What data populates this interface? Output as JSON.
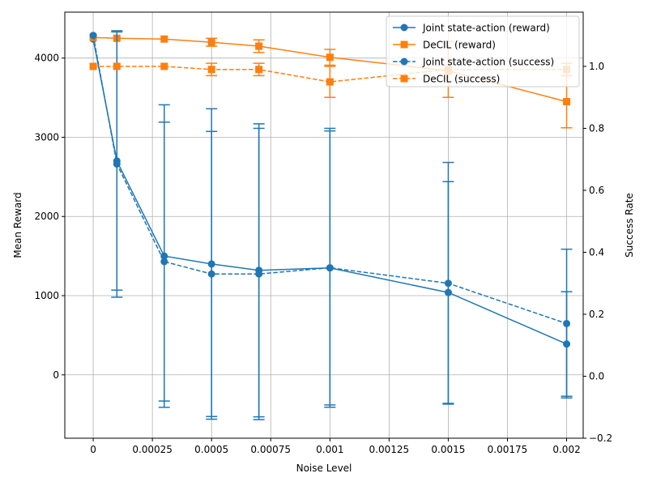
{
  "chart_data": {
    "type": "line",
    "x": [
      0,
      0.0001,
      0.0003,
      0.0005,
      0.0007,
      0.001,
      0.0015,
      0.002
    ],
    "x_tick_labels": [
      "0",
      "0.00025",
      "0.0005",
      "0.00075",
      "0.001",
      "0.00125",
      "0.0015",
      "0.00175",
      "0.002"
    ],
    "x_ticks": [
      0,
      0.00025,
      0.0005,
      0.00075,
      0.001,
      0.00125,
      0.0015,
      0.00175,
      0.002
    ],
    "xlim": [
      -0.00012,
      0.00207
    ],
    "xlabel": "Noise Level",
    "ylabel_left": "Mean Reward",
    "ylabel_right": "Success Rate",
    "ylim_left": [
      -800,
      4580
    ],
    "ylim_right": [
      -0.2,
      1.175
    ],
    "yticks_left": [
      0,
      1000,
      2000,
      3000,
      4000
    ],
    "yticks_left_labels": [
      "0",
      "1000",
      "2000",
      "3000",
      "4000"
    ],
    "yticks_right": [
      -0.2,
      0,
      0.2,
      0.4,
      0.6,
      0.8,
      1.0
    ],
    "yticks_right_labels": [
      "−0.2",
      "0.0",
      "0.2",
      "0.4",
      "0.6",
      "0.8",
      "1.0"
    ],
    "grid": true,
    "legend_position": "top-right",
    "series": [
      {
        "name": "Joint state-action (reward)",
        "axis": "left",
        "color": "#1f77b4",
        "marker": "circle",
        "dash": false,
        "values": [
          4240,
          2700,
          1500,
          1400,
          1320,
          1350,
          1040,
          390
        ],
        "errors": [
          0,
          1630,
          1910,
          1960,
          1850,
          1730,
          1400,
          660
        ]
      },
      {
        "name": "DeCIL (reward)",
        "axis": "left",
        "color": "#ff7f0e",
        "marker": "square",
        "dash": false,
        "values": [
          4260,
          4250,
          4240,
          4200,
          4150,
          4010,
          3840,
          3450
        ],
        "errors": [
          0,
          0,
          0,
          50,
          80,
          100,
          0,
          330
        ]
      },
      {
        "name": "Joint state-action (success)",
        "axis": "right",
        "color": "#1f77b4",
        "marker": "circle",
        "dash": true,
        "values": [
          1.1,
          0.685,
          0.37,
          0.33,
          0.33,
          0.35,
          0.3,
          0.17
        ],
        "errors": [
          0,
          0.43,
          0.45,
          0.46,
          0.47,
          0.45,
          0.39,
          0.24
        ]
      },
      {
        "name": "DeCIL (success)",
        "axis": "right",
        "color": "#ff7f0e",
        "marker": "square",
        "dash": true,
        "values": [
          1.0,
          1.0,
          1.0,
          0.99,
          0.99,
          0.95,
          0.99,
          0.99
        ],
        "errors": [
          0,
          0,
          0,
          0.02,
          0.02,
          0.05,
          0.09,
          0.02
        ]
      }
    ]
  }
}
